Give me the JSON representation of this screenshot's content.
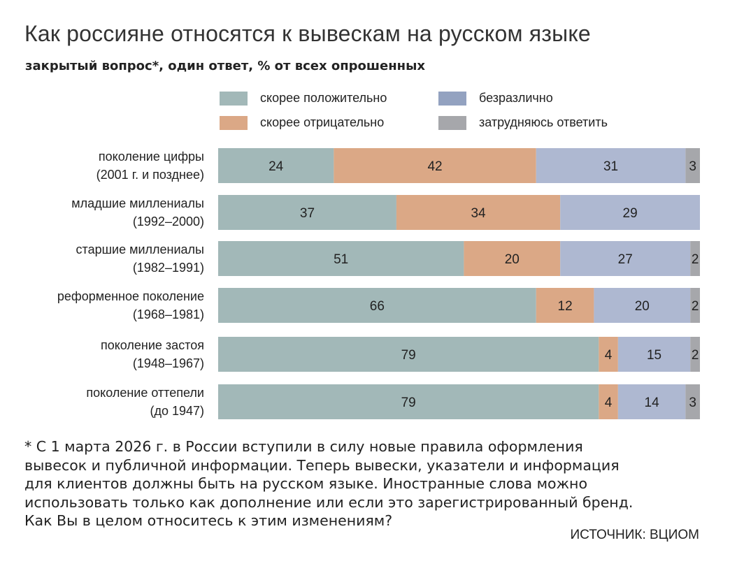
{
  "chart_data": {
    "type": "bar",
    "orientation": "horizontal",
    "stacked": true,
    "title": "Как россияне относятся к вывескам на русском языке",
    "subtitle": "закрытый вопрос*, один ответ, % от всех опрошенных",
    "xlim": [
      0,
      100
    ],
    "grid": false,
    "legend_placement": "top",
    "categories": [
      [
        "поколение цифры",
        "(2001 г. и позднее)"
      ],
      [
        "младшие миллениалы",
        "(1992–2000)"
      ],
      [
        "старшие миллениалы",
        "(1982–1991)"
      ],
      [
        "реформенное поколение",
        "(1968–1981)"
      ],
      [
        "поколение застоя",
        "(1948–1967)"
      ],
      [
        "поколение оттепели",
        "(до 1947)"
      ]
    ],
    "series": [
      {
        "name": "скорее положительно",
        "color": "#a2b8b8",
        "values": [
          24,
          37,
          51,
          66,
          79,
          79
        ]
      },
      {
        "name": "скорее отрицательно",
        "color": "#dba886",
        "values": [
          42,
          34,
          20,
          12,
          4,
          4
        ]
      },
      {
        "name": "безразлично",
        "color": "#aeb8d1",
        "legend_color": "#93a2c0",
        "values": [
          31,
          29,
          27,
          20,
          15,
          14
        ]
      },
      {
        "name": "затрудняюсь ответить",
        "color": "#a6a7ab",
        "values": [
          3,
          0,
          2,
          2,
          2,
          3
        ]
      }
    ]
  },
  "footnote": [
    "* С 1 марта 2026 г. в России вступили в силу новые правила оформления",
    "вывесок и публичной информации. Теперь вывески, указатели и информация",
    "для клиентов должны быть на русском языке. Иностранные слова можно",
    "использовать только как дополнение или если это зарегистрированный бренд.",
    "Как Вы в целом относитесь к этим изменениям?"
  ],
  "source": "ИСТОЧНИК: ВЦИОМ"
}
